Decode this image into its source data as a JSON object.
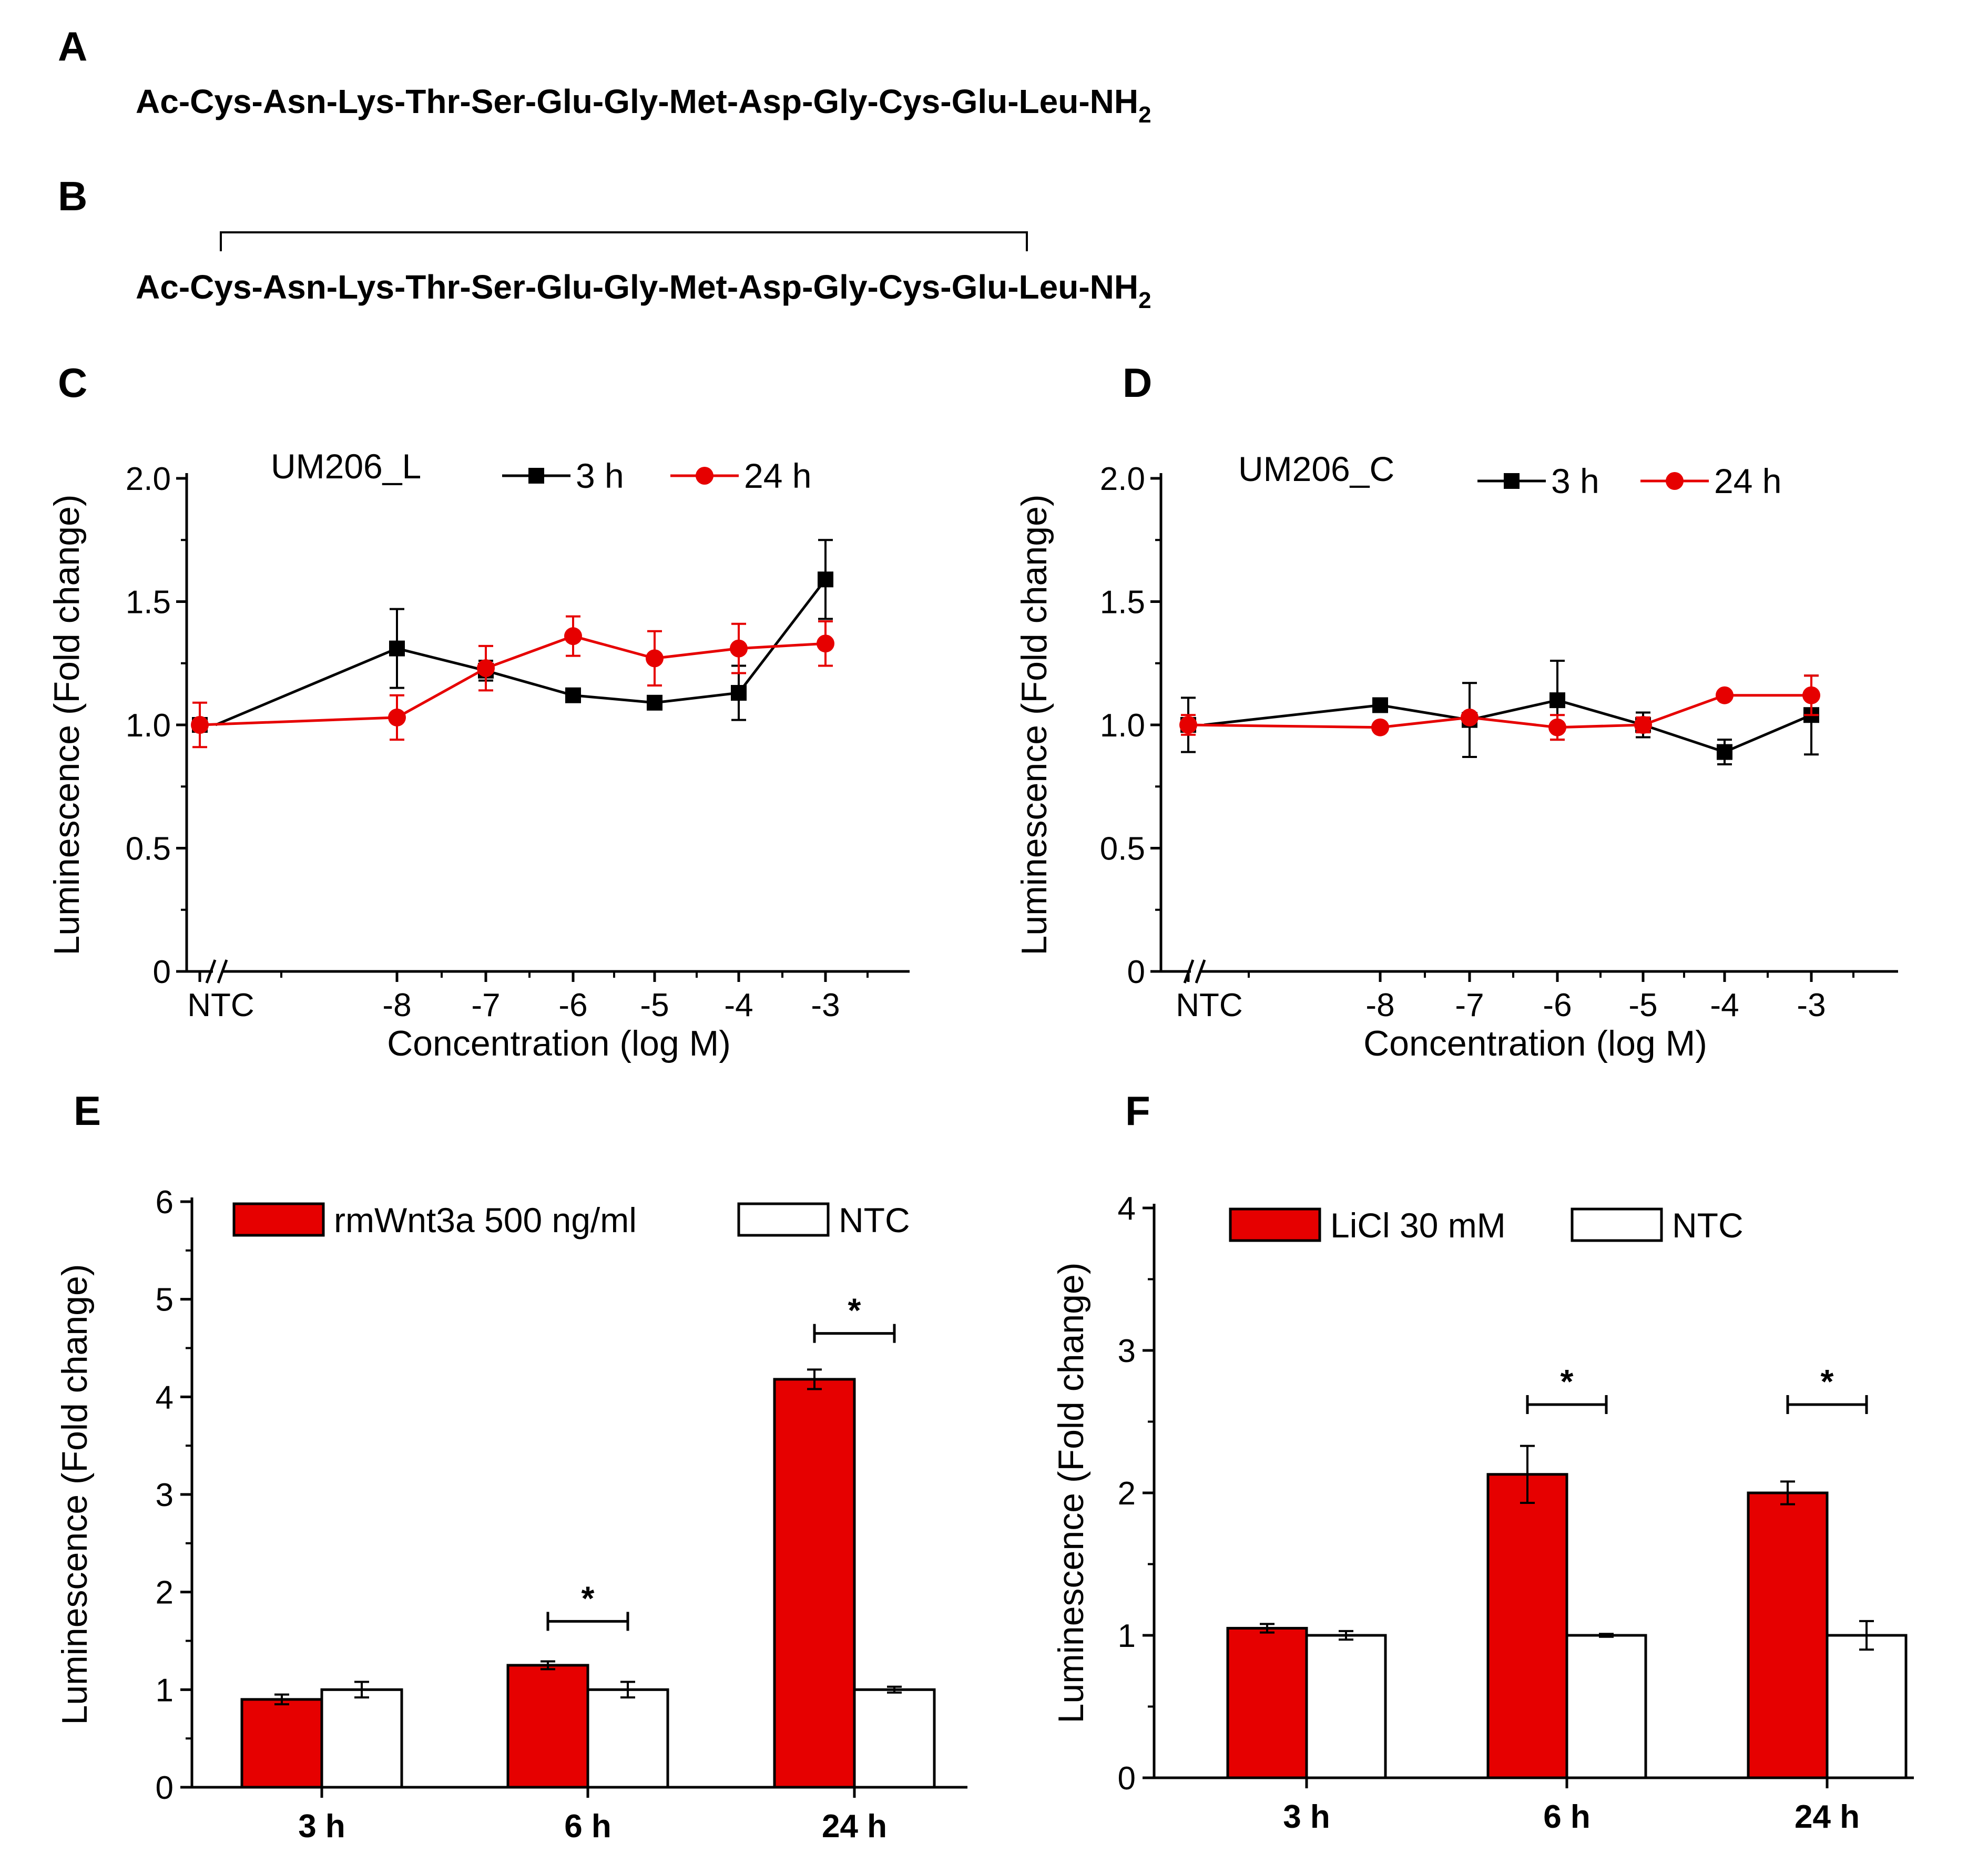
{
  "panels": {
    "A": {
      "letter": "A",
      "sequence": "Ac-Cys-Asn-Lys-Thr-Ser-Glu-Gly-Met-Asp-Gly-Cys-Glu-Leu-NH",
      "subscript": "2"
    },
    "B": {
      "letter": "B",
      "sequence": "Ac-Cys-Asn-Lys-Thr-Ser-Glu-Gly-Met-Asp-Gly-Cys-Glu-Leu-NH",
      "subscript": "2"
    }
  },
  "colors": {
    "black": "#000000",
    "red": "#e60000"
  },
  "chart_data": [
    {
      "id": "C",
      "letter": "C",
      "type": "line",
      "title": "UM206_L",
      "xlabel": "Concentration (log M)",
      "ylabel": "Luminescence (Fold change)",
      "ylim": [
        0,
        2.0
      ],
      "yticks": [
        "0",
        "0.5",
        "1.0",
        "1.5",
        "2.0"
      ],
      "xticks": [
        "NTC",
        "-8",
        "-7",
        "-6",
        "-5",
        "-4",
        "-3"
      ],
      "legend_position": "top",
      "series": [
        {
          "name": "3 h",
          "marker": "square",
          "color": "#000000",
          "values": [
            1.0,
            1.31,
            1.22,
            1.12,
            1.09,
            1.13,
            1.59
          ],
          "errors": [
            0.0,
            0.16,
            0.04,
            0.01,
            0.01,
            0.11,
            0.16
          ]
        },
        {
          "name": "24 h",
          "marker": "circle",
          "color": "#e60000",
          "values": [
            1.0,
            1.03,
            1.23,
            1.36,
            1.27,
            1.31,
            1.33
          ],
          "errors": [
            0.09,
            0.09,
            0.09,
            0.08,
            0.11,
            0.1,
            0.09
          ]
        }
      ]
    },
    {
      "id": "D",
      "letter": "D",
      "type": "line",
      "title": "UM206_C",
      "xlabel": "Concentration (log M)",
      "ylabel": "Luminescence (Fold change)",
      "ylim": [
        0,
        2.0
      ],
      "yticks": [
        "0",
        "0.5",
        "1.0",
        "1.5",
        "2.0"
      ],
      "xticks": [
        "NTC",
        "-8",
        "-7",
        "-6",
        "-5",
        "-4",
        "-3"
      ],
      "legend_position": "top",
      "series": [
        {
          "name": "3 h",
          "marker": "square",
          "color": "#000000",
          "values": [
            1.0,
            1.08,
            1.02,
            1.1,
            1.0,
            0.89,
            1.04
          ],
          "errors": [
            0.11,
            0.01,
            0.15,
            0.16,
            0.05,
            0.05,
            0.16
          ]
        },
        {
          "name": "24 h",
          "marker": "circle",
          "color": "#e60000",
          "values": [
            1.0,
            0.99,
            1.03,
            0.99,
            1.0,
            1.12,
            1.12
          ],
          "errors": [
            0.04,
            0.0,
            0.0,
            0.05,
            0.03,
            0.0,
            0.08
          ]
        }
      ]
    },
    {
      "id": "E",
      "letter": "E",
      "type": "bar",
      "xlabel": "",
      "ylabel": "Luminescence (Fold change)",
      "ylim": [
        0,
        6
      ],
      "yticks": [
        "0",
        "1",
        "2",
        "3",
        "4",
        "5",
        "6"
      ],
      "categories": [
        "3 h",
        "6 h",
        "24 h"
      ],
      "legend_position": "top",
      "series": [
        {
          "name": "rmWnt3a 500 ng/ml",
          "fill": "#e60000",
          "values": [
            0.9,
            1.25,
            4.18
          ],
          "errors": [
            0.05,
            0.04,
            0.1
          ]
        },
        {
          "name": "NTC",
          "fill": "#ffffff",
          "values": [
            1.0,
            1.0,
            1.0
          ],
          "errors": [
            0.08,
            0.08,
            0.03
          ]
        }
      ],
      "significance": [
        {
          "category_index": 1,
          "label": "*",
          "y": 1.7
        },
        {
          "category_index": 2,
          "label": "*",
          "y": 4.65
        }
      ]
    },
    {
      "id": "F",
      "letter": "F",
      "type": "bar",
      "xlabel": "",
      "ylabel": "Luminescence (Fold change)",
      "ylim": [
        0,
        4
      ],
      "yticks": [
        "0",
        "1",
        "2",
        "3",
        "4"
      ],
      "categories": [
        "3 h",
        "6 h",
        "24 h"
      ],
      "legend_position": "top",
      "series": [
        {
          "name": "LiCl 30 mM",
          "fill": "#e60000",
          "values": [
            1.05,
            2.13,
            2.0
          ],
          "errors": [
            0.03,
            0.2,
            0.08
          ]
        },
        {
          "name": "NTC",
          "fill": "#ffffff",
          "values": [
            1.0,
            1.0,
            1.0
          ],
          "errors": [
            0.03,
            0.01,
            0.1
          ]
        }
      ],
      "significance": [
        {
          "category_index": 1,
          "label": "*",
          "y": 2.62
        },
        {
          "category_index": 2,
          "label": "*",
          "y": 2.62
        }
      ]
    }
  ]
}
